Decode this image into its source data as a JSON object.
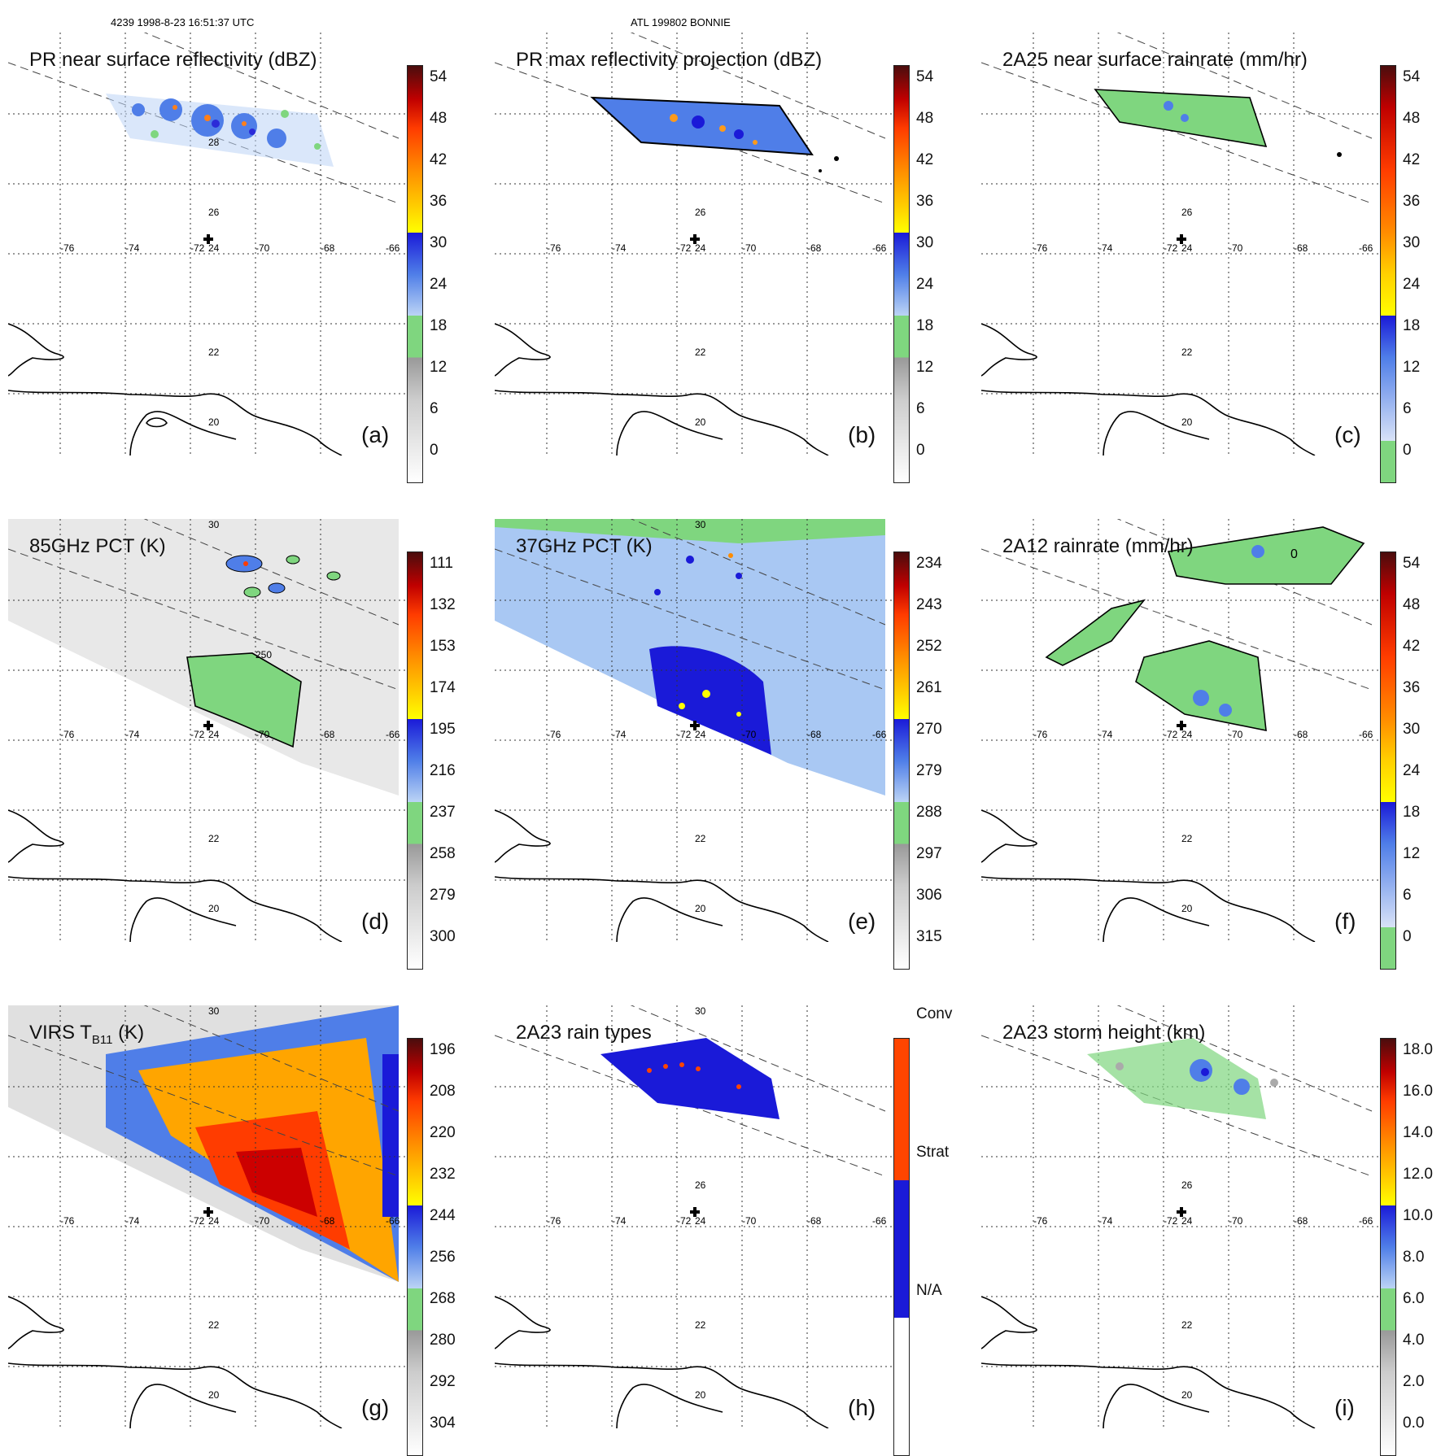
{
  "header": {
    "orbit_time": "4239 1998-8-23 16:51:37 UTC",
    "storm": "ATL 199802 BONNIE"
  },
  "axes": {
    "lat_labels": [
      "30",
      "28",
      "26",
      "24",
      "22",
      "20"
    ],
    "lon_labels": [
      "-76",
      "-74",
      "-72",
      "-70",
      "-68",
      "-66"
    ]
  },
  "panels": [
    {
      "title": "PR near surface reflectivity (dBZ)",
      "label": "(a)",
      "colorbar": [
        "0",
        "6",
        "12",
        "18",
        "24",
        "30",
        "36",
        "42",
        "48",
        "54"
      ]
    },
    {
      "title": "PR max reflectivity projection (dBZ)",
      "label": "(b)",
      "colorbar": [
        "0",
        "6",
        "12",
        "18",
        "24",
        "30",
        "36",
        "42",
        "48",
        "54"
      ]
    },
    {
      "title": "2A25 near surface rainrate (mm/hr)",
      "label": "(c)",
      "colorbar": [
        "0",
        "6",
        "12",
        "18",
        "24",
        "30",
        "36",
        "42",
        "48",
        "54"
      ]
    },
    {
      "title": "85GHz PCT (K)",
      "label": "(d)",
      "colorbar": [
        "300",
        "279",
        "258",
        "237",
        "216",
        "195",
        "174",
        "153",
        "132",
        "111"
      ]
    },
    {
      "title": "37GHz PCT (K)",
      "label": "(e)",
      "colorbar": [
        "315",
        "306",
        "297",
        "288",
        "279",
        "270",
        "261",
        "252",
        "243",
        "234"
      ]
    },
    {
      "title": "2A12 rainrate (mm/hr)",
      "label": "(f)",
      "colorbar": [
        "0",
        "6",
        "12",
        "18",
        "24",
        "30",
        "36",
        "42",
        "48",
        "54"
      ]
    },
    {
      "title": "VIRS T",
      "title_sub": "B11",
      "title_suffix": " (K)",
      "label": "(g)",
      "colorbar": [
        "304",
        "292",
        "280",
        "268",
        "256",
        "244",
        "232",
        "220",
        "208",
        "196"
      ]
    },
    {
      "title": "2A23 rain types",
      "label": "(h)",
      "colorbar": [
        "N/A",
        "Strat",
        "Conv"
      ]
    },
    {
      "title": "2A23 storm height (km)",
      "label": "(i)",
      "colorbar": [
        "0.0",
        "2.0",
        "4.0",
        "6.0",
        "8.0",
        "10.0",
        "12.0",
        "14.0",
        "16.0",
        "18.0"
      ]
    }
  ],
  "contour_labels": {
    "d": "250",
    "f": "0"
  }
}
